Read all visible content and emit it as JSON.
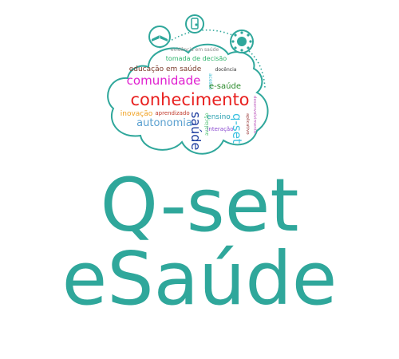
{
  "logo": {
    "title_line_1": "Q-set",
    "title_line_2": "eSaúde",
    "brand_color": "#2fa79b",
    "icons": [
      "open-book-icon",
      "smartphone-touch-icon",
      "people-circle-icon"
    ],
    "word_cloud": [
      {
        "text": "evidência em saúde",
        "color": "#8a8a8a"
      },
      {
        "text": "tomada de decisão",
        "color": "#2db36b"
      },
      {
        "text": "educação em saúde",
        "color": "#7a3a2a"
      },
      {
        "text": "docência",
        "color": "#333333"
      },
      {
        "text": "acesso",
        "color": "#3bbbd0"
      },
      {
        "text": "comunidade",
        "color": "#e01fd0"
      },
      {
        "text": "e-saúde",
        "color": "#2a8a2a"
      },
      {
        "text": "conhecimento",
        "color": "#e8201f"
      },
      {
        "text": "inovação",
        "color": "#f0a020"
      },
      {
        "text": "aprendizado",
        "color": "#c0392b"
      },
      {
        "text": "ensino",
        "color": "#2aa0b0"
      },
      {
        "text": "autonomia",
        "color": "#5aa0d0"
      },
      {
        "text": "saúde",
        "color": "#2040a0"
      },
      {
        "text": "q-set",
        "color": "#3ac0e0"
      },
      {
        "text": "interação",
        "color": "#8a4ad0"
      },
      {
        "text": "avaliação",
        "color": "#4ac070"
      },
      {
        "text": "aplicativo",
        "color": "#9a3a3a"
      },
      {
        "text": "desenvolvimento",
        "color": "#c060c0"
      }
    ]
  }
}
